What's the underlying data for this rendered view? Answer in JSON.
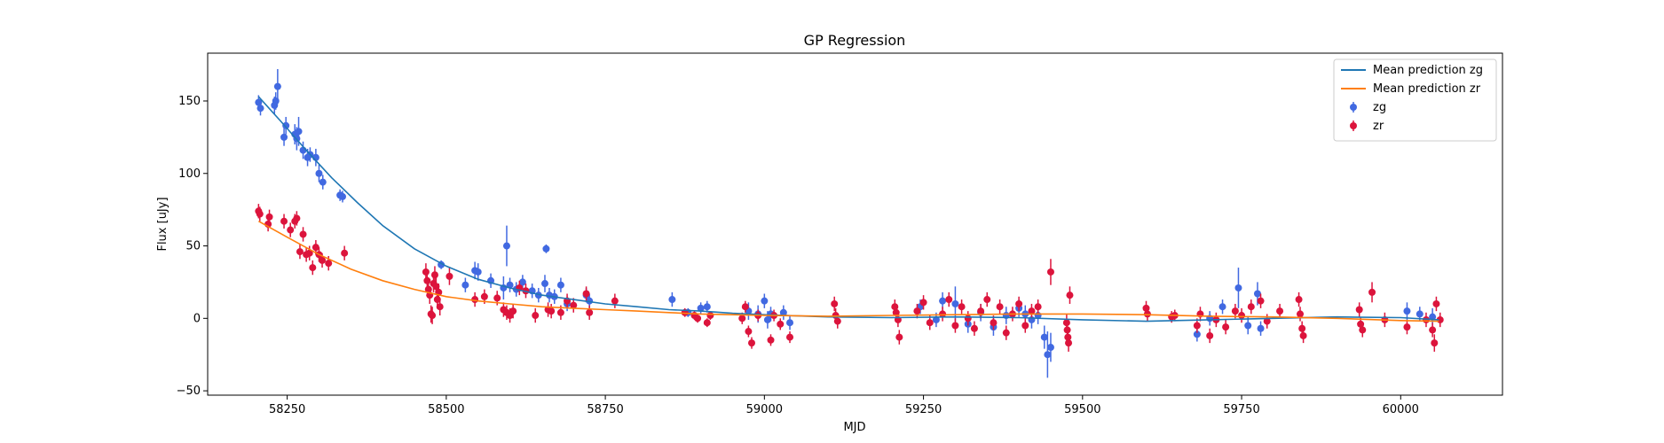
{
  "chart_data": {
    "type": "scatter",
    "title": "GP Regression",
    "xlabel": "MJD",
    "ylabel": "Flux [uJy]",
    "xlim": [
      58125,
      60160
    ],
    "ylim": [
      -53,
      183
    ],
    "xticks": [
      58250,
      58500,
      58750,
      59000,
      59250,
      59500,
      59750,
      60000
    ],
    "yticks": [
      -50,
      0,
      50,
      100,
      150
    ],
    "legend_position": "top-right",
    "legend": [
      {
        "label": "Mean prediction zg",
        "kind": "line",
        "color": "#1f77b4"
      },
      {
        "label": "Mean prediction zr",
        "kind": "line",
        "color": "#ff7f0e"
      },
      {
        "label": "zg",
        "kind": "marker",
        "color": "#4169e1"
      },
      {
        "label": "zr",
        "kind": "marker",
        "color": "#dc143c"
      }
    ],
    "lines": [
      {
        "name": "Mean prediction zg",
        "color": "#1f77b4",
        "x": [
          58205,
          58240,
          58280,
          58320,
          58360,
          58400,
          58450,
          58500,
          58550,
          58600,
          58650,
          58700,
          58750,
          58800,
          58850,
          58900,
          58950,
          59000,
          59100,
          59200,
          59300,
          59400,
          59500,
          59600,
          59700,
          59800,
          59900,
          60000,
          60060
        ],
        "y": [
          153,
          136,
          116,
          97,
          80,
          64,
          48,
          36,
          27,
          21,
          16,
          13,
          10,
          8,
          6,
          5,
          3.5,
          2.5,
          1,
          0.5,
          1,
          0.5,
          -1,
          -2,
          -1,
          0,
          1,
          0.5,
          -1
        ]
      },
      {
        "name": "Mean prediction zr",
        "color": "#ff7f0e",
        "x": [
          58205,
          58250,
          58300,
          58350,
          58400,
          58450,
          58500,
          58550,
          58600,
          58650,
          58700,
          58750,
          58800,
          58850,
          58900,
          58950,
          59000,
          59100,
          59200,
          59300,
          59400,
          59500,
          59600,
          59700,
          59800,
          59900,
          60000,
          60060
        ],
        "y": [
          67,
          56,
          44,
          34,
          26,
          20,
          15,
          12,
          10,
          8,
          7,
          6,
          5,
          4,
          3,
          2.5,
          2,
          1.5,
          2,
          2.5,
          3,
          3,
          2.5,
          1.5,
          1,
          0,
          -1.5,
          -2
        ]
      }
    ],
    "series": [
      {
        "name": "zg",
        "color": "#4169e1",
        "points": [
          [
            58205,
            149,
            5
          ],
          [
            58208,
            145,
            5
          ],
          [
            58230,
            147,
            6
          ],
          [
            58232,
            150,
            6
          ],
          [
            58235,
            160,
            12
          ],
          [
            58245,
            125,
            6
          ],
          [
            58248,
            133,
            6
          ],
          [
            58262,
            127,
            7
          ],
          [
            58265,
            124,
            8
          ],
          [
            58268,
            129,
            10
          ],
          [
            58275,
            116,
            6
          ],
          [
            58282,
            111,
            6
          ],
          [
            58286,
            113,
            5
          ],
          [
            58295,
            111,
            6
          ],
          [
            58300,
            100,
            6
          ],
          [
            58306,
            94,
            5
          ],
          [
            58333,
            85,
            4
          ],
          [
            58337,
            84,
            4
          ],
          [
            58492,
            37,
            3
          ],
          [
            58530,
            23,
            5
          ],
          [
            58545,
            33,
            6
          ],
          [
            58550,
            32,
            6
          ],
          [
            58570,
            26,
            5
          ],
          [
            58590,
            21,
            8
          ],
          [
            58595,
            50,
            14
          ],
          [
            58600,
            23,
            5
          ],
          [
            58610,
            20,
            5
          ],
          [
            58620,
            25,
            5
          ],
          [
            58635,
            19,
            5
          ],
          [
            58645,
            16,
            5
          ],
          [
            58655,
            24,
            6
          ],
          [
            58657,
            48,
            3
          ],
          [
            58662,
            16,
            5
          ],
          [
            58670,
            15,
            5
          ],
          [
            58680,
            23,
            5
          ],
          [
            58690,
            10,
            5
          ],
          [
            58720,
            16,
            5
          ],
          [
            58725,
            12,
            5
          ],
          [
            58855,
            13,
            5
          ],
          [
            58880,
            4,
            3
          ],
          [
            58900,
            7,
            4
          ],
          [
            58910,
            8,
            4
          ],
          [
            58975,
            5,
            6
          ],
          [
            58990,
            3,
            6
          ],
          [
            59000,
            12,
            5
          ],
          [
            59005,
            -1,
            6
          ],
          [
            59010,
            3,
            5
          ],
          [
            59030,
            4,
            5
          ],
          [
            59040,
            -3,
            5
          ],
          [
            59245,
            8,
            5
          ],
          [
            59270,
            -1,
            5
          ],
          [
            59280,
            12,
            6
          ],
          [
            59300,
            10,
            12
          ],
          [
            59320,
            -4,
            6
          ],
          [
            59340,
            4,
            6
          ],
          [
            59360,
            -6,
            6
          ],
          [
            59380,
            2,
            6
          ],
          [
            59400,
            7,
            6
          ],
          [
            59410,
            3,
            6
          ],
          [
            59420,
            -1,
            6
          ],
          [
            59430,
            2,
            6
          ],
          [
            59440,
            -13,
            8
          ],
          [
            59445,
            -25,
            16
          ],
          [
            59450,
            -20,
            10
          ],
          [
            59680,
            -11,
            5
          ],
          [
            59700,
            0,
            5
          ],
          [
            59720,
            8,
            5
          ],
          [
            59745,
            21,
            14
          ],
          [
            59760,
            -5,
            6
          ],
          [
            59775,
            17,
            8
          ],
          [
            59780,
            -7,
            5
          ],
          [
            60010,
            5,
            6
          ],
          [
            60030,
            3,
            5
          ],
          [
            60050,
            1,
            6
          ]
        ]
      },
      {
        "name": "zr",
        "color": "#dc143c",
        "points": [
          [
            58205,
            74,
            5
          ],
          [
            58207,
            72,
            5
          ],
          [
            58220,
            65,
            5
          ],
          [
            58222,
            70,
            5
          ],
          [
            58245,
            67,
            5
          ],
          [
            58255,
            61,
            5
          ],
          [
            58262,
            67,
            5
          ],
          [
            58265,
            69,
            5
          ],
          [
            58270,
            46,
            5
          ],
          [
            58275,
            58,
            5
          ],
          [
            58280,
            44,
            5
          ],
          [
            58285,
            45,
            5
          ],
          [
            58290,
            35,
            5
          ],
          [
            58295,
            49,
            5
          ],
          [
            58300,
            44,
            5
          ],
          [
            58305,
            40,
            5
          ],
          [
            58315,
            38,
            5
          ],
          [
            58340,
            45,
            5
          ],
          [
            58468,
            32,
            6
          ],
          [
            58470,
            26,
            6
          ],
          [
            58472,
            20,
            6
          ],
          [
            58474,
            16,
            6
          ],
          [
            58476,
            3,
            6
          ],
          [
            58478,
            2,
            6
          ],
          [
            58480,
            24,
            6
          ],
          [
            58482,
            30,
            6
          ],
          [
            58484,
            22,
            6
          ],
          [
            58486,
            13,
            6
          ],
          [
            58488,
            18,
            6
          ],
          [
            58490,
            8,
            6
          ],
          [
            58505,
            29,
            6
          ],
          [
            58545,
            13,
            5
          ],
          [
            58560,
            15,
            5
          ],
          [
            58580,
            14,
            5
          ],
          [
            58590,
            6,
            5
          ],
          [
            58595,
            4,
            5
          ],
          [
            58600,
            2,
            5
          ],
          [
            58605,
            5,
            5
          ],
          [
            58615,
            21,
            5
          ],
          [
            58625,
            19,
            5
          ],
          [
            58640,
            2,
            5
          ],
          [
            58660,
            6,
            5
          ],
          [
            58665,
            5,
            5
          ],
          [
            58680,
            4,
            5
          ],
          [
            58690,
            12,
            5
          ],
          [
            58700,
            9,
            5
          ],
          [
            58720,
            17,
            5
          ],
          [
            58725,
            4,
            5
          ],
          [
            58765,
            12,
            5
          ],
          [
            58875,
            4,
            3
          ],
          [
            58890,
            2,
            3
          ],
          [
            58895,
            0,
            3
          ],
          [
            58910,
            -3,
            3
          ],
          [
            58915,
            2,
            3
          ],
          [
            58965,
            0,
            4
          ],
          [
            58970,
            8,
            4
          ],
          [
            58975,
            -9,
            4
          ],
          [
            58980,
            -17,
            4
          ],
          [
            58990,
            2,
            4
          ],
          [
            59010,
            -15,
            4
          ],
          [
            59015,
            2,
            4
          ],
          [
            59025,
            -4,
            4
          ],
          [
            59040,
            -13,
            4
          ],
          [
            59110,
            10,
            5
          ],
          [
            59112,
            2,
            5
          ],
          [
            59115,
            -2,
            5
          ],
          [
            59205,
            8,
            5
          ],
          [
            59207,
            4,
            5
          ],
          [
            59210,
            -1,
            5
          ],
          [
            59212,
            -13,
            5
          ],
          [
            59240,
            5,
            5
          ],
          [
            59250,
            11,
            5
          ],
          [
            59260,
            -3,
            5
          ],
          [
            59280,
            3,
            5
          ],
          [
            59290,
            13,
            5
          ],
          [
            59300,
            -5,
            5
          ],
          [
            59310,
            8,
            5
          ],
          [
            59320,
            0,
            5
          ],
          [
            59330,
            -7,
            5
          ],
          [
            59340,
            5,
            5
          ],
          [
            59350,
            13,
            5
          ],
          [
            59360,
            -3,
            5
          ],
          [
            59370,
            8,
            5
          ],
          [
            59380,
            -10,
            5
          ],
          [
            59390,
            3,
            5
          ],
          [
            59400,
            10,
            5
          ],
          [
            59410,
            -5,
            5
          ],
          [
            59420,
            5,
            5
          ],
          [
            59430,
            8,
            5
          ],
          [
            59450,
            32,
            9
          ],
          [
            59475,
            -3,
            6
          ],
          [
            59476,
            -8,
            6
          ],
          [
            59477,
            -13,
            6
          ],
          [
            59478,
            -17,
            6
          ],
          [
            59480,
            16,
            6
          ],
          [
            59600,
            7,
            5
          ],
          [
            59602,
            3,
            5
          ],
          [
            59640,
            1,
            4
          ],
          [
            59645,
            2,
            4
          ],
          [
            59680,
            -5,
            5
          ],
          [
            59685,
            3,
            5
          ],
          [
            59700,
            -12,
            5
          ],
          [
            59710,
            -1,
            5
          ],
          [
            59725,
            -6,
            5
          ],
          [
            59740,
            5,
            5
          ],
          [
            59750,
            2,
            5
          ],
          [
            59765,
            8,
            5
          ],
          [
            59780,
            12,
            5
          ],
          [
            59790,
            -2,
            5
          ],
          [
            59810,
            5,
            5
          ],
          [
            59840,
            13,
            5
          ],
          [
            59842,
            3,
            5
          ],
          [
            59845,
            -7,
            5
          ],
          [
            59847,
            -12,
            5
          ],
          [
            59935,
            6,
            5
          ],
          [
            59937,
            -4,
            5
          ],
          [
            59940,
            -8,
            5
          ],
          [
            59955,
            18,
            7
          ],
          [
            59975,
            -1,
            5
          ],
          [
            60010,
            -6,
            5
          ],
          [
            60040,
            -1,
            5
          ],
          [
            60050,
            -8,
            5
          ],
          [
            60053,
            -17,
            6
          ],
          [
            60056,
            10,
            5
          ],
          [
            60062,
            -1,
            5
          ]
        ]
      }
    ]
  }
}
